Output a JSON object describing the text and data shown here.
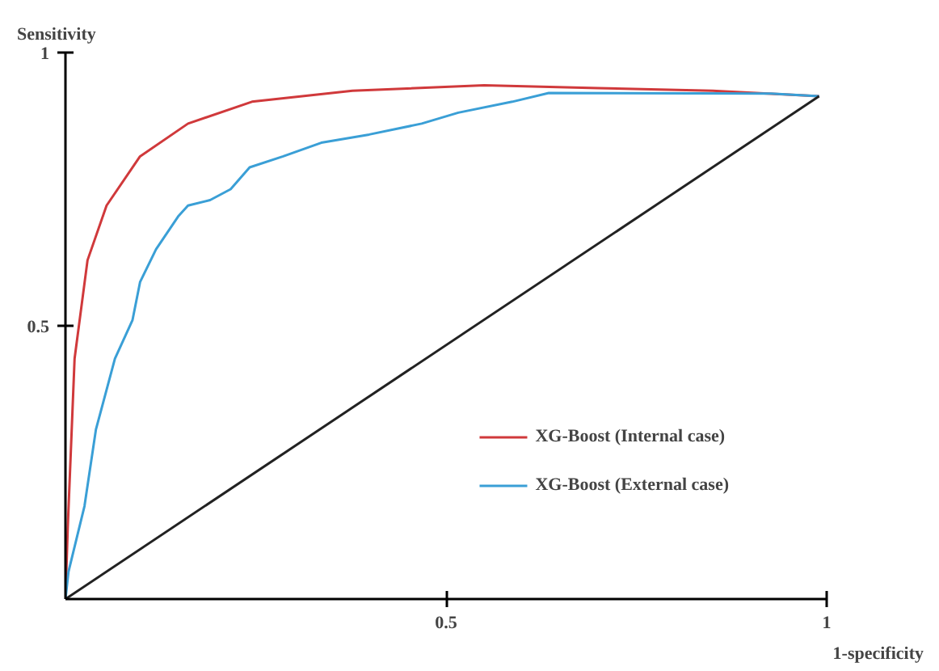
{
  "chart_data": {
    "type": "line",
    "xlabel": "1-specificity",
    "ylabel": "Sensitivity",
    "xlim": [
      0,
      1
    ],
    "ylim": [
      0,
      1
    ],
    "xticks": [
      0.5,
      1
    ],
    "yticks": [
      0.5,
      1
    ],
    "grid": false,
    "legend": "bottom right",
    "marker": "none",
    "line_style": "solid",
    "series": [
      {
        "name": "XG-Boost (Internal case)",
        "color": "#d0393b",
        "x": [
          0,
          0.003,
          0.012,
          0.029,
          0.054,
          0.098,
          0.161,
          0.245,
          0.377,
          0.55,
          0.7,
          0.85,
          0.99
        ],
        "values": [
          0,
          0.13,
          0.44,
          0.62,
          0.72,
          0.81,
          0.87,
          0.91,
          0.93,
          0.94,
          0.935,
          0.93,
          0.92
        ]
      },
      {
        "name": "XG-Boost (External case)",
        "color": "#3a9fd6",
        "x": [
          0,
          0.004,
          0.025,
          0.04,
          0.065,
          0.088,
          0.098,
          0.119,
          0.148,
          0.161,
          0.19,
          0.217,
          0.242,
          0.286,
          0.336,
          0.399,
          0.468,
          0.516,
          0.587,
          0.635,
          0.927,
          0.99
        ],
        "values": [
          0,
          0.05,
          0.17,
          0.31,
          0.44,
          0.51,
          0.58,
          0.64,
          0.7,
          0.72,
          0.73,
          0.75,
          0.79,
          0.81,
          0.835,
          0.85,
          0.87,
          0.89,
          0.91,
          0.926,
          0.925,
          0.92
        ]
      },
      {
        "color": "#222222",
        "x": [
          0,
          0.99
        ],
        "values": [
          0,
          0.92
        ]
      }
    ]
  }
}
